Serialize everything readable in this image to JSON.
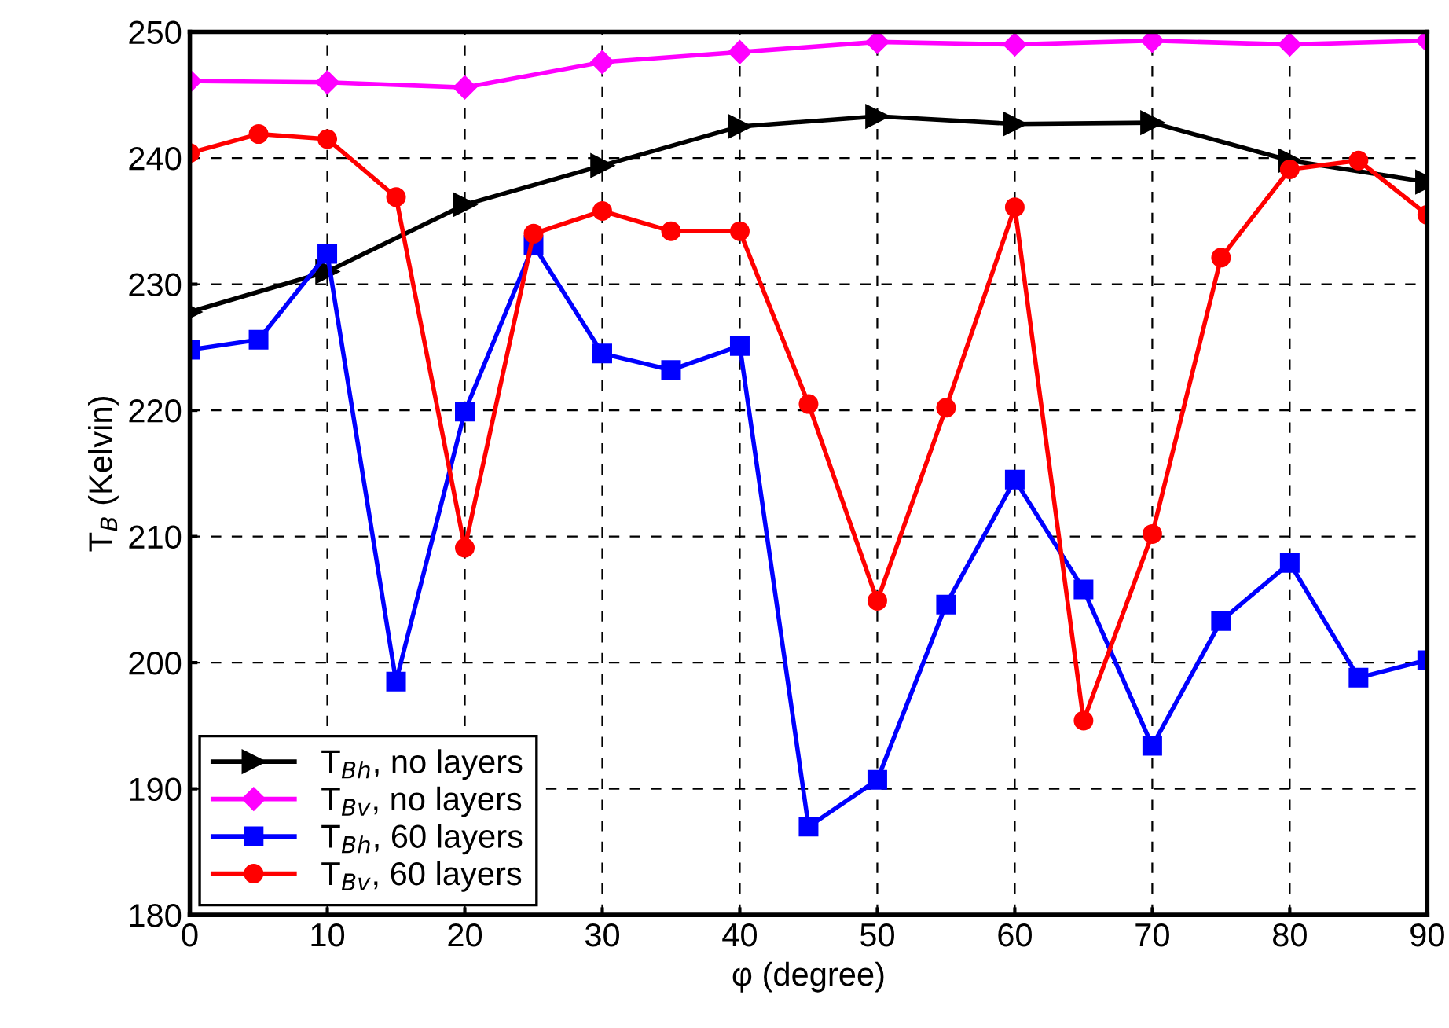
{
  "chart_data": {
    "type": "line",
    "xlabel": "φ (degree)",
    "ylabel": "T$_{B}$ (Kelvin)",
    "xlim": [
      0,
      90
    ],
    "xticks": [
      0,
      10,
      20,
      30,
      40,
      50,
      60,
      70,
      80,
      90
    ],
    "ylim": [
      180,
      250
    ],
    "yticks": [
      180,
      190,
      200,
      210,
      220,
      230,
      240,
      250
    ],
    "grid": true,
    "legend": "bottom left",
    "line_style": "solid",
    "series": [
      {
        "name": "T$_{Bh}$, no layers",
        "color": "#000000",
        "marker": "triangle",
        "x": [
          0,
          10,
          20,
          30,
          40,
          50,
          60,
          70,
          80,
          90
        ],
        "values": [
          227.8,
          231.0,
          236.3,
          239.4,
          242.5,
          243.3,
          242.7,
          242.8,
          239.8,
          238.1
        ]
      },
      {
        "name": "T$_{Bv}$, no layers",
        "color": "#ff00ff",
        "marker": "diamond",
        "x": [
          0,
          10,
          20,
          30,
          40,
          50,
          60,
          70,
          80,
          90
        ],
        "values": [
          246.1,
          246.0,
          245.6,
          247.6,
          248.4,
          249.2,
          249.0,
          249.3,
          249.0,
          249.3
        ]
      },
      {
        "name": "T$_{Bh}$, 60 layers",
        "color": "#0000ff",
        "marker": "square",
        "x": [
          0,
          5,
          10,
          15,
          20,
          25,
          30,
          35,
          40,
          45,
          50,
          55,
          60,
          65,
          70,
          75,
          80,
          85,
          90
        ],
        "values": [
          224.8,
          225.6,
          232.4,
          198.5,
          219.9,
          233.1,
          224.5,
          223.2,
          225.1,
          187.0,
          190.7,
          204.6,
          214.5,
          205.8,
          193.4,
          203.3,
          207.9,
          198.8,
          200.2
        ]
      },
      {
        "name": "T$_{Bv}$, 60 layers",
        "color": "#ff0000",
        "marker": "circle",
        "x": [
          0,
          5,
          10,
          15,
          20,
          25,
          30,
          35,
          40,
          45,
          50,
          55,
          60,
          65,
          70,
          75,
          80,
          85,
          90
        ],
        "values": [
          240.4,
          241.9,
          241.5,
          236.9,
          209.1,
          234.0,
          235.8,
          234.2,
          234.2,
          220.5,
          204.9,
          220.2,
          236.1,
          195.4,
          210.2,
          232.1,
          239.1,
          239.8,
          235.5
        ]
      }
    ]
  }
}
